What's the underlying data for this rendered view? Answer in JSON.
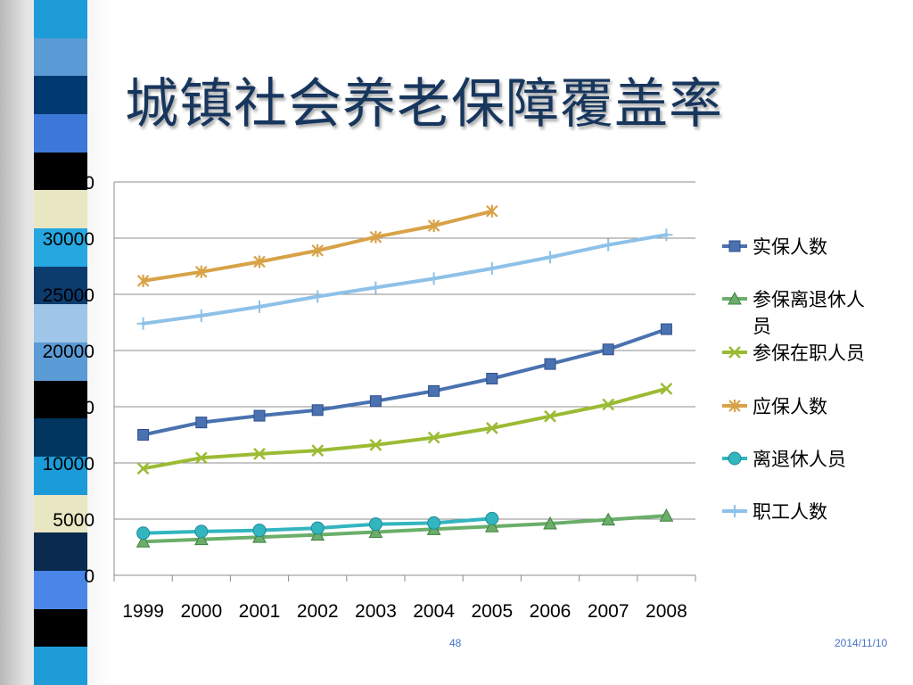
{
  "slide": {
    "title": "城镇社会养老保障覆盖率",
    "page_number": "48",
    "date": "2014/11/10"
  },
  "decor": {
    "strip_colors": [
      "#1e9cd7",
      "#5b9bd5",
      "#003a70",
      "#3c78d8",
      "#000000",
      "#e9e6c3",
      "#26a7e0",
      "#0c3b6e",
      "#9fc5e8",
      "#5b9bd5",
      "#000000",
      "#00365f",
      "#1b9bd8",
      "#e9e6c3",
      "#0a2a50",
      "#4a86e8",
      "#000000",
      "#1e9cd7"
    ],
    "strip_pattern": "stacked-bands"
  },
  "chart_data": {
    "type": "line",
    "title": "",
    "xlabel": "",
    "ylabel": "",
    "categories": [
      "1999",
      "2000",
      "2001",
      "2002",
      "2003",
      "2004",
      "2005",
      "2006",
      "2007",
      "2008"
    ],
    "ylim": [
      0,
      35000
    ],
    "yticks": [
      0,
      5000,
      10000,
      15000,
      20000,
      25000,
      30000,
      35000
    ],
    "grid": "horizontal",
    "legend_position": "right",
    "series": [
      {
        "name": "实保人数",
        "color": "#4a72b0",
        "marker": "square",
        "values": [
          12500,
          13600,
          14200,
          14700,
          15500,
          16400,
          17500,
          18800,
          20100,
          21900
        ]
      },
      {
        "name": "参保离退休人员",
        "color": "#6aae6a",
        "marker": "triangle",
        "values": [
          3000,
          3200,
          3400,
          3600,
          3850,
          4100,
          4350,
          4600,
          4950,
          5300
        ]
      },
      {
        "name": "参保在职人员",
        "color": "#9bbb34",
        "marker": "x",
        "values": [
          9500,
          10450,
          10800,
          11100,
          11600,
          12250,
          13100,
          14150,
          15200,
          16600
        ]
      },
      {
        "name": "应保人数",
        "color": "#d8a247",
        "marker": "star",
        "values": [
          26200,
          27000,
          27900,
          28900,
          30100,
          31100,
          32400,
          null,
          null,
          null
        ]
      },
      {
        "name": "离退休人员",
        "color": "#33b5c0",
        "marker": "circle",
        "values": [
          3750,
          3900,
          4000,
          4200,
          4550,
          4650,
          5050,
          null,
          null,
          null
        ]
      },
      {
        "name": "职工人数",
        "color": "#8ec1e8",
        "marker": "plus",
        "values": [
          22400,
          23100,
          23900,
          24800,
          25600,
          26400,
          27300,
          28300,
          29400,
          30300
        ]
      }
    ]
  }
}
